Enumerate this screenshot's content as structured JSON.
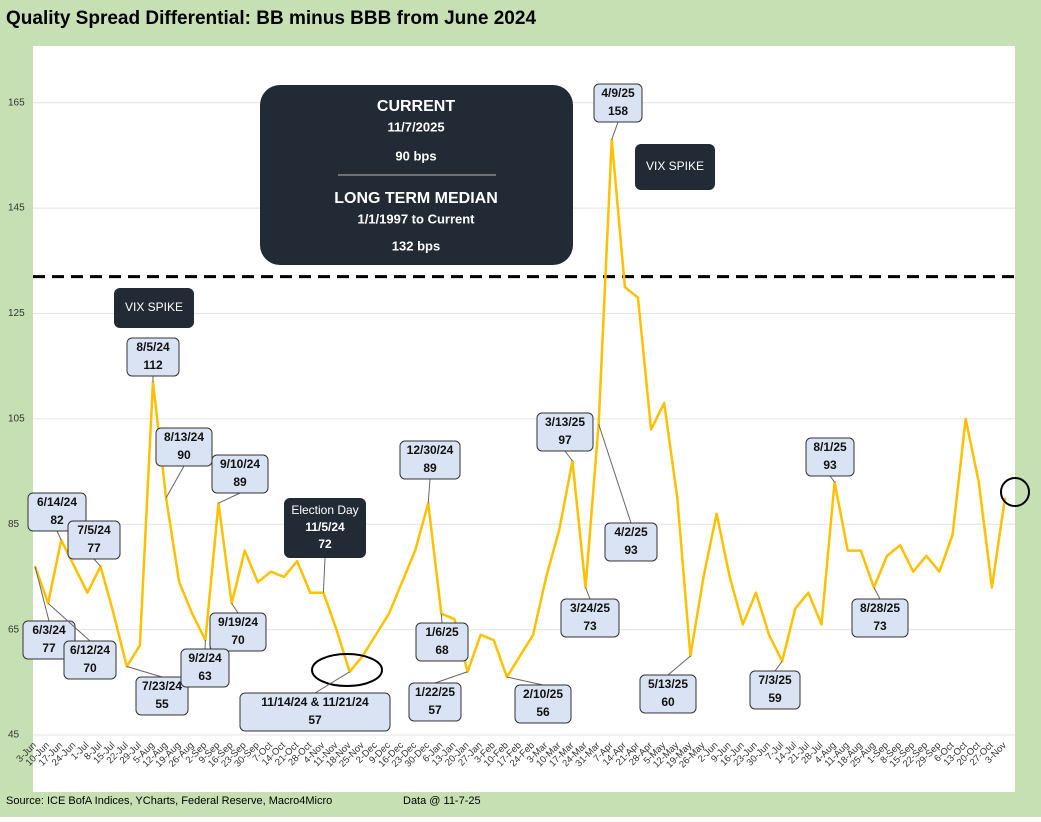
{
  "chart_data": {
    "type": "line",
    "title": "Quality Spread Differential: BB minus BBB from June 2024",
    "source": "Source: ICE BofA Indices, YCharts, Federal Reserve, Macro4Micro",
    "data_note": "Data @ 11-7-25",
    "categories": [
      "3-Jun",
      "10-Jun",
      "17-Jun",
      "24-Jun",
      "1-Jul",
      "8-Jul",
      "15-Jul",
      "22-Jul",
      "29-Jul",
      "5-Aug",
      "12-Aug",
      "19-Aug",
      "26-Aug",
      "2-Sep",
      "9-Sep",
      "16-Sep",
      "23-Sep",
      "30-Sep",
      "7-Oct",
      "14-Oct",
      "21-Oct",
      "28-Oct",
      "4-Nov",
      "11-Nov",
      "18-Nov",
      "25-Nov",
      "2-Dec",
      "9-Dec",
      "16-Dec",
      "23-Dec",
      "30-Dec",
      "6-Jan",
      "13-Jan",
      "20-Jan",
      "27-Jan",
      "3-Feb",
      "10-Feb",
      "17-Feb",
      "24-Feb",
      "3-Mar",
      "10-Mar",
      "17-Mar",
      "24-Mar",
      "31-Mar",
      "7-Apr",
      "14-Apr",
      "21-Apr",
      "28-Apr",
      "5-May",
      "12-May",
      "19-May",
      "26-May",
      "2-Jun",
      "9-Jun",
      "16-Jun",
      "23-Jun",
      "30-Jun",
      "7-Jul",
      "14-Jul",
      "21-Jul",
      "28-Jul",
      "4-Aug",
      "11-Aug",
      "18-Aug",
      "25-Aug",
      "1-Sep",
      "8-Sep",
      "15-Sep",
      "22-Sep",
      "29-Sep",
      "6-Oct",
      "13-Oct",
      "20-Oct",
      "27-Oct",
      "3-Nov"
    ],
    "values": [
      77,
      70,
      82,
      77,
      72,
      77,
      68,
      58,
      62,
      112,
      90,
      74,
      68,
      63,
      89,
      70,
      80,
      74,
      76,
      75,
      78,
      72,
      72,
      65,
      57,
      60,
      64,
      68,
      74,
      80,
      89,
      68,
      67,
      57,
      64,
      63,
      56,
      60,
      64,
      75,
      84,
      97,
      73,
      104,
      158,
      130,
      128,
      103,
      108,
      90,
      60,
      75,
      87,
      75,
      66,
      72,
      64,
      59,
      69,
      72,
      66,
      93,
      80,
      80,
      73,
      79,
      81,
      76,
      79,
      76,
      83,
      105,
      93,
      73,
      90
    ],
    "color": "#ffc000",
    "ylim": [
      45,
      175
    ],
    "yticks": [
      45,
      65,
      85,
      105,
      125,
      145,
      165
    ],
    "median": 132,
    "annotations": [
      {
        "date": "6/14/24",
        "value": 82
      },
      {
        "date": "7/5/24",
        "value": 77
      },
      {
        "date": "6/3/24",
        "value": 77
      },
      {
        "date": "6/12/24",
        "value": 70
      },
      {
        "date": "7/23/24",
        "value": 55
      },
      {
        "date": "8/5/24",
        "value": 112
      },
      {
        "date": "8/13/24",
        "value": 90
      },
      {
        "date": "9/10/24",
        "value": 89
      },
      {
        "date": "9/19/24",
        "value": 70
      },
      {
        "date": "9/2/24",
        "value": 63
      },
      {
        "date": "11/14/24 & 11/21/24",
        "value": 57
      },
      {
        "date": "12/30/24",
        "value": 89
      },
      {
        "date": "1/6/25",
        "value": 68
      },
      {
        "date": "1/22/25",
        "value": 57
      },
      {
        "date": "2/10/25",
        "value": 56
      },
      {
        "date": "3/13/25",
        "value": 97
      },
      {
        "date": "3/24/25",
        "value": 73
      },
      {
        "date": "4/9/25",
        "value": 158
      },
      {
        "date": "4/2/25",
        "value": 93
      },
      {
        "date": "5/13/25",
        "value": 60
      },
      {
        "date": "7/3/25",
        "value": 59
      },
      {
        "date": "8/1/25",
        "value": 93
      },
      {
        "date": "8/28/25",
        "value": 73
      }
    ],
    "election": {
      "label": "Election Day",
      "date": "11/5/24",
      "value": 72
    },
    "vix_labels": [
      "VIX SPIKE",
      "VIX SPIKE"
    ],
    "info_box": {
      "title": "CURRENT",
      "date": "11/7/2025",
      "value_text": "90 bps",
      "median_title": "LONG TERM MEDIAN",
      "median_range": "1/1/1997 to Current",
      "median_text": "132 bps"
    }
  }
}
